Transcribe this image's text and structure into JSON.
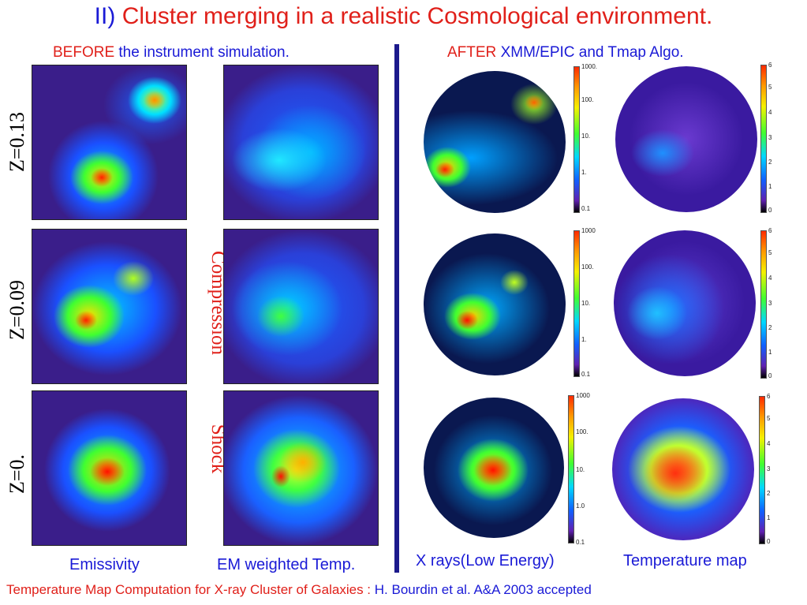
{
  "title": {
    "number": "II)",
    "text": "Cluster merging in a realistic Cosmological environment."
  },
  "before_header": {
    "keyword": "BEFORE",
    "rest": "the instrument  simulation."
  },
  "after_header": {
    "keyword": "AFTER",
    "rest": "XMM/EPIC and Tmap Algo."
  },
  "redshift_labels": [
    "Z=0.13",
    "Z=0.09",
    "Z=0."
  ],
  "vertical_labels": {
    "compression": "Compression",
    "shock": "Shock"
  },
  "captions": {
    "emissivity": "Emissivity",
    "em_temp": "EM weighted Temp.",
    "xrays": "X rays(Low Energy)",
    "tmap": "Temperature map"
  },
  "xray_colorbar_ticks": [
    [
      "1000.",
      "100.",
      "10.",
      "1.",
      "0.1"
    ],
    [
      "1000",
      "100.",
      "10.",
      "1.",
      "0.1"
    ],
    [
      "1000",
      "100.",
      "10.",
      "1.0",
      "0.1"
    ]
  ],
  "temp_colorbar_ticks": [
    "6",
    "5",
    "4",
    "3",
    "2",
    "1",
    "0"
  ],
  "footer": {
    "red_part": "Temperature Map Computation for X-ray Cluster of Galaxies :",
    "blue_part": "H. Bourdin et al. A&A 2003 accepted"
  },
  "colors": {
    "title_red": "#e0201a",
    "title_blue": "#1a1ad6",
    "divider": "#1c1a8c"
  }
}
